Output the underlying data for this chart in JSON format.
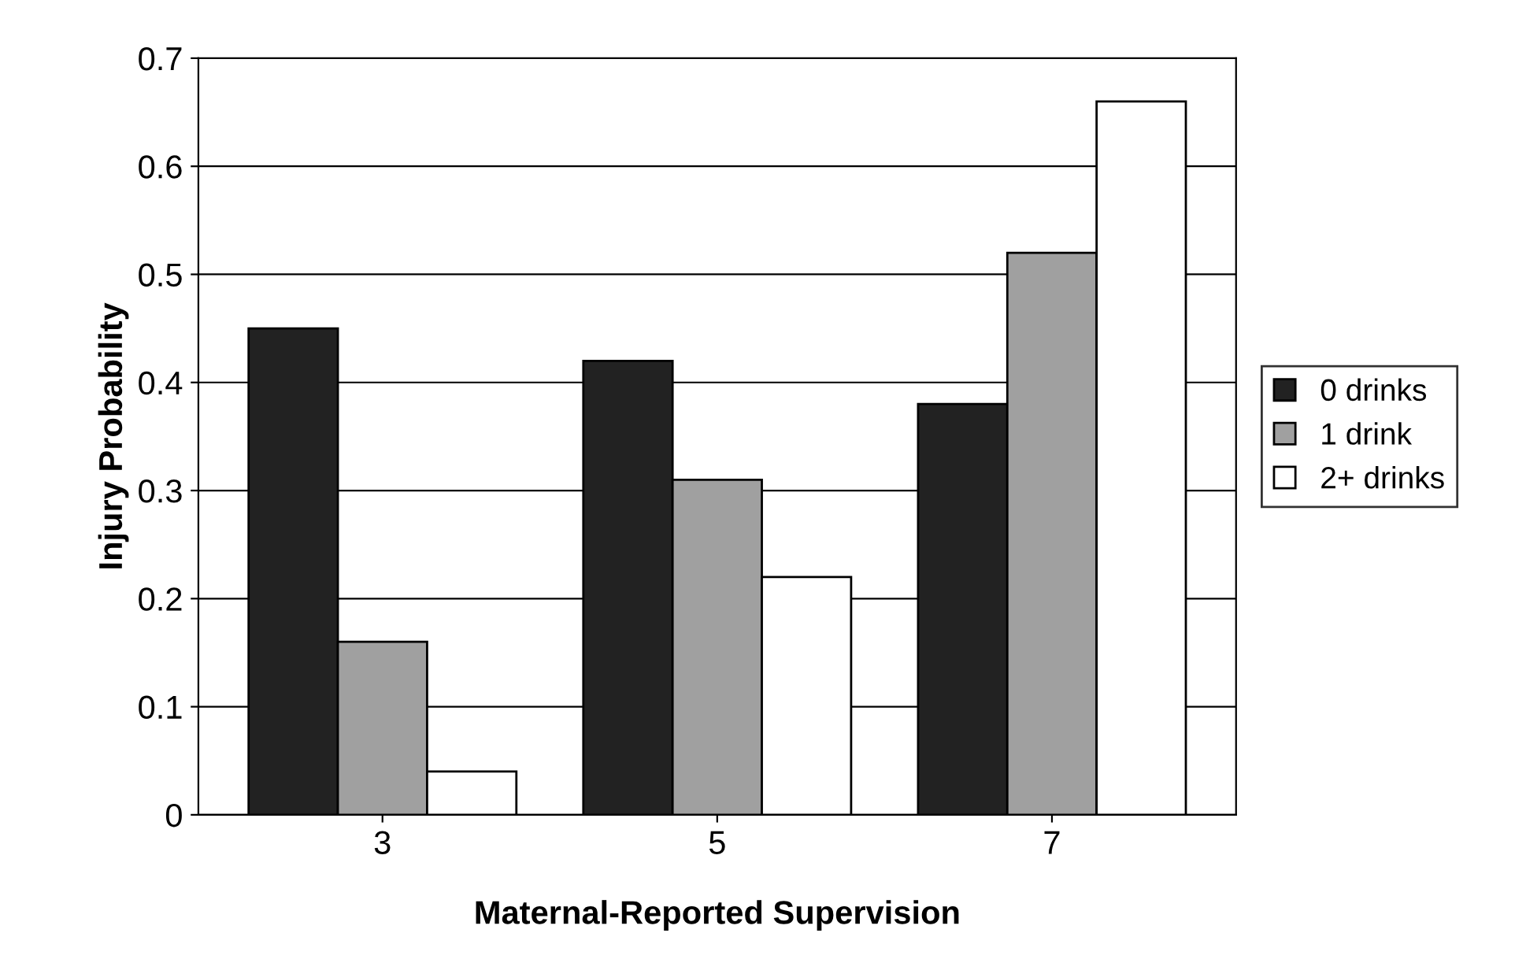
{
  "chart_data": {
    "type": "bar",
    "xlabel": "Maternal-Reported Supervision",
    "ylabel": "Injury Probability",
    "categories": [
      "3",
      "5",
      "7"
    ],
    "series": [
      {
        "name": "0 drinks",
        "color": "#222222",
        "values": [
          0.45,
          0.42,
          0.38
        ]
      },
      {
        "name": "1 drink",
        "color": "#a0a0a0",
        "values": [
          0.16,
          0.31,
          0.52
        ]
      },
      {
        "name": "2+ drinks",
        "color": "#ffffff",
        "values": [
          0.04,
          0.22,
          0.66
        ]
      }
    ],
    "ylim": [
      0,
      0.7
    ],
    "yticks": [
      0,
      0.1,
      0.2,
      0.3,
      0.4,
      0.5,
      0.6,
      0.7
    ],
    "grid": "y",
    "legend": "right"
  }
}
